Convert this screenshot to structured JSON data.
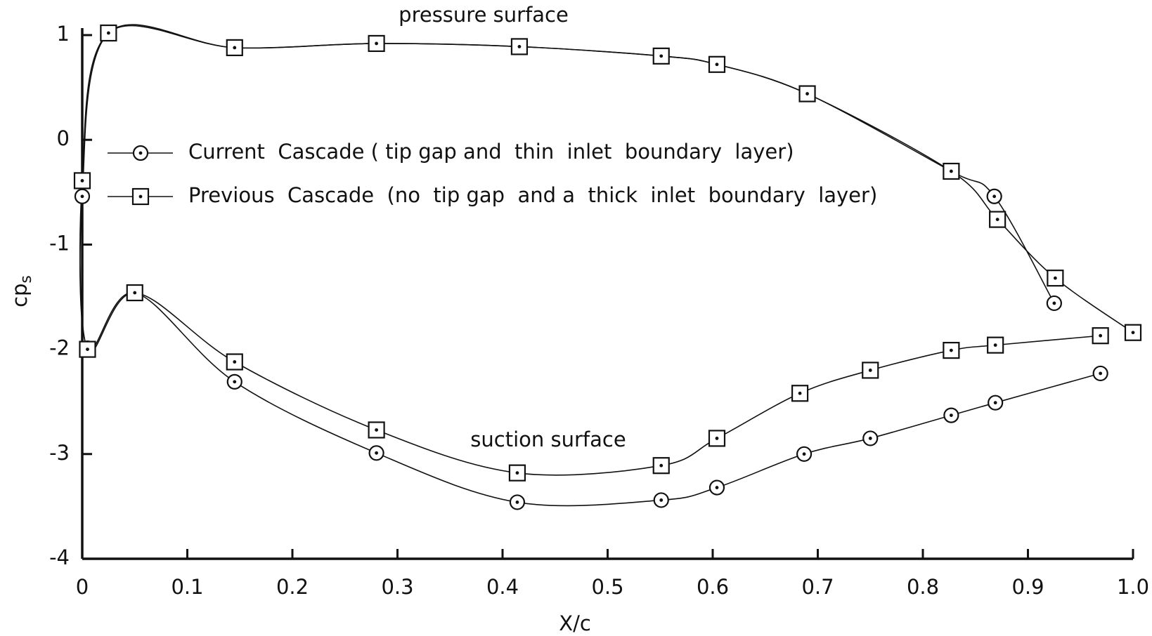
{
  "chart_data": {
    "type": "line",
    "xlabel": "X/c",
    "ylabel": "cp",
    "ylabel_sub": "s",
    "annotations": [
      "pressure  surface",
      "suction  surface"
    ],
    "xlim": [
      0,
      1
    ],
    "ylim": [
      -4,
      1
    ],
    "xticks": [
      0,
      0.1,
      0.2,
      0.3,
      0.4,
      0.5,
      0.6,
      0.7,
      0.8,
      0.9,
      {
        "value": 1,
        "label": "1.0"
      }
    ],
    "yticks": [
      1,
      0,
      -1,
      -2,
      -3,
      -4
    ],
    "series": [
      {
        "name": "Current  Cascade ( tip gap and  thin  inlet  boundary  layer)",
        "color": "#111111",
        "marker": "circle",
        "x": [
          0.925,
          0.868,
          0.827,
          0.69,
          0.604,
          0.551,
          0.416,
          0.28,
          0.145,
          0.025,
          0,
          0.005,
          0.05,
          0.145,
          0.28,
          0.414,
          0.551,
          0.604,
          0.687,
          0.75,
          0.827,
          0.869,
          0.969
        ],
        "values": [
          -1.56,
          -0.54,
          -0.3,
          0.44,
          0.72,
          0.8,
          0.89,
          0.92,
          0.88,
          1.02,
          -0.54,
          -1.99,
          -1.46,
          -2.31,
          -2.99,
          -3.46,
          -3.44,
          -3.32,
          -3.0,
          -2.85,
          -2.63,
          -2.51,
          -2.23
        ]
      },
      {
        "name": "Previous  Cascade  (no  tip gap  and a  thick  inlet  boundary  layer)",
        "color": "#111111",
        "marker": "square",
        "x": [
          1.0,
          0.926,
          0.871,
          0.827,
          0.69,
          0.604,
          0.551,
          0.416,
          0.28,
          0.145,
          0.025,
          0,
          0.005,
          0.05,
          0.145,
          0.28,
          0.414,
          0.551,
          0.604,
          0.683,
          0.75,
          0.827,
          0.869,
          0.969
        ],
        "values": [
          -1.84,
          -1.32,
          -0.76,
          -0.3,
          0.44,
          0.72,
          0.8,
          0.89,
          0.92,
          0.88,
          1.02,
          -0.39,
          -2.0,
          -1.46,
          -2.12,
          -2.77,
          -3.18,
          -3.11,
          -2.85,
          -2.42,
          -2.2,
          -2.01,
          -1.96,
          -1.87
        ]
      }
    ]
  }
}
